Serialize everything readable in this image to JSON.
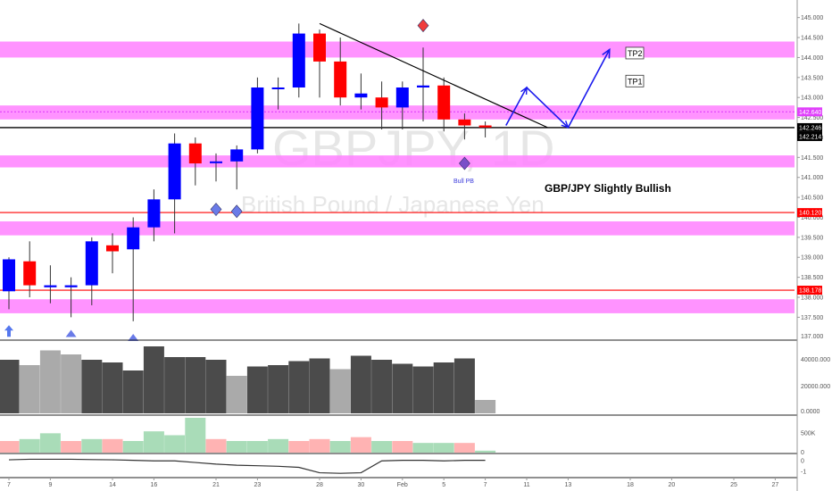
{
  "chart_data": {
    "type": "candlestick",
    "symbol": "GBPJPY, 1D",
    "description": "British Pound / Japanese Yen",
    "annotation": "GBP/JPY Slightly Bullish",
    "pattern_label": "Bull PB",
    "targets": [
      {
        "label": "TP2",
        "price": 144.1
      },
      {
        "label": "TP1",
        "price": 143.4
      }
    ],
    "price_axis": {
      "ylim": [
        136.95,
        145.35
      ],
      "ticks": [
        "137.500",
        "138.000",
        "138.500",
        "139.000",
        "139.500",
        "140.000",
        "140.500",
        "141.000",
        "141.500",
        "142.000",
        "142.500",
        "143.000",
        "143.500",
        "144.000",
        "144.500",
        "145.000"
      ],
      "partial_ticks": [
        {
          "price": 137.0,
          "label": "137.000"
        }
      ]
    },
    "price_tags": [
      {
        "label": "142.640",
        "price": 142.64,
        "color": "#e040fb"
      },
      {
        "label": "142.246",
        "price": 142.246,
        "color": "#000000"
      },
      {
        "label": "142.214",
        "price": 142.214,
        "color": "#000000"
      },
      {
        "label": "140.120",
        "price": 140.12,
        "color": "#ff0000"
      },
      {
        "label": "138.178",
        "price": 138.178,
        "color": "#ff0000"
      }
    ],
    "zones": [
      {
        "from": 144.0,
        "to": 144.4
      },
      {
        "from": 142.45,
        "to": 142.8
      },
      {
        "from": 141.25,
        "to": 141.55
      },
      {
        "from": 139.55,
        "to": 139.9
      },
      {
        "from": 137.6,
        "to": 137.95
      }
    ],
    "hlines": [
      {
        "price": 142.64,
        "color": "#e040fb",
        "style": "dotted"
      },
      {
        "price": 142.246,
        "color": "#000000",
        "style": "solid"
      },
      {
        "price": 140.12,
        "color": "#ff0000",
        "style": "solid"
      },
      {
        "price": 138.178,
        "color": "#ff0000",
        "style": "solid"
      }
    ],
    "trendline": {
      "from": {
        "slot": 15,
        "price": 144.85
      },
      "to": {
        "slot": 26,
        "price": 142.25
      }
    },
    "projection_path": [
      {
        "slot": 24,
        "price": 142.3
      },
      {
        "slot": 25,
        "price": 143.25
      },
      {
        "slot": 27,
        "price": 142.25
      },
      {
        "slot": 29,
        "price": 144.2
      }
    ],
    "markers": [
      {
        "slot": 20,
        "price": 144.8,
        "shape": "diamond",
        "color": "#f03c3c"
      },
      {
        "slot": 22,
        "price": 141.35,
        "shape": "diamond",
        "color": "#7b4fc9"
      },
      {
        "slot": 10,
        "price": 140.2,
        "shape": "diamond",
        "color": "#6a7be8"
      },
      {
        "slot": 11,
        "price": 140.15,
        "shape": "diamond",
        "color": "#6a7be8"
      },
      {
        "slot": 0,
        "price": 137.1,
        "shape": "arrow-up",
        "color": "#5577ee"
      },
      {
        "slot": 3,
        "price": 137.05,
        "shape": "triangle-up",
        "color": "#6a7be8"
      },
      {
        "slot": 6,
        "price": 136.95,
        "shape": "triangle-up",
        "color": "#6a7be8"
      }
    ],
    "candles": [
      {
        "o": 138.15,
        "h": 139.0,
        "l": 137.7,
        "c": 138.95
      },
      {
        "o": 138.9,
        "h": 139.4,
        "l": 138.0,
        "c": 138.3
      },
      {
        "o": 138.25,
        "h": 138.8,
        "l": 137.85,
        "c": 138.3
      },
      {
        "o": 138.25,
        "h": 138.5,
        "l": 137.5,
        "c": 138.3
      },
      {
        "o": 138.3,
        "h": 139.5,
        "l": 137.8,
        "c": 139.4
      },
      {
        "o": 139.3,
        "h": 139.6,
        "l": 138.6,
        "c": 139.15
      },
      {
        "o": 139.2,
        "h": 140.0,
        "l": 137.4,
        "c": 139.75
      },
      {
        "o": 139.75,
        "h": 140.7,
        "l": 139.4,
        "c": 140.45
      },
      {
        "o": 140.45,
        "h": 142.1,
        "l": 139.6,
        "c": 141.85
      },
      {
        "o": 141.85,
        "h": 142.0,
        "l": 140.8,
        "c": 141.35
      },
      {
        "o": 141.4,
        "h": 141.6,
        "l": 140.9,
        "c": 141.4
      },
      {
        "o": 141.4,
        "h": 141.8,
        "l": 140.7,
        "c": 141.7
      },
      {
        "o": 141.7,
        "h": 143.5,
        "l": 141.6,
        "c": 143.25
      },
      {
        "o": 143.25,
        "h": 143.5,
        "l": 142.7,
        "c": 143.25
      },
      {
        "o": 143.25,
        "h": 144.85,
        "l": 143.0,
        "c": 144.6
      },
      {
        "o": 144.6,
        "h": 144.7,
        "l": 143.0,
        "c": 143.9
      },
      {
        "o": 143.9,
        "h": 144.5,
        "l": 142.8,
        "c": 143.0
      },
      {
        "o": 143.0,
        "h": 143.6,
        "l": 142.7,
        "c": 143.1
      },
      {
        "o": 143.0,
        "h": 143.4,
        "l": 142.2,
        "c": 142.75
      },
      {
        "o": 142.75,
        "h": 143.4,
        "l": 142.2,
        "c": 143.25
      },
      {
        "o": 143.25,
        "h": 144.25,
        "l": 142.4,
        "c": 143.3
      },
      {
        "o": 143.3,
        "h": 143.5,
        "l": 142.15,
        "c": 142.45
      },
      {
        "o": 142.45,
        "h": 142.6,
        "l": 141.95,
        "c": 142.3
      },
      {
        "o": 142.3,
        "h": 142.4,
        "l": 142.0,
        "c": 142.25
      }
    ],
    "volume": {
      "axis_ticks": [
        {
          "label": "40000.000",
          "value": 40000
        },
        {
          "label": "20000.000",
          "value": 20000
        },
        {
          "label": "0.0000",
          "value": 0
        }
      ],
      "max": 52000,
      "values": [
        40000,
        36000,
        47000,
        44000,
        40000,
        38000,
        32000,
        50000,
        42000,
        42000,
        40000,
        28000,
        35000,
        36000,
        39000,
        41000,
        33000,
        43000,
        40000,
        37000,
        35000,
        38000,
        41000,
        10000
      ],
      "colors": [
        "#4b4b4b",
        "#aaaaaa",
        "#aaaaaa",
        "#aaaaaa",
        "#4b4b4b",
        "#4b4b4b",
        "#4b4b4b",
        "#4b4b4b",
        "#4b4b4b",
        "#4b4b4b",
        "#4b4b4b",
        "#aaaaaa",
        "#4b4b4b",
        "#4b4b4b",
        "#4b4b4b",
        "#4b4b4b",
        "#aaaaaa",
        "#4b4b4b",
        "#4b4b4b",
        "#4b4b4b",
        "#4b4b4b",
        "#4b4b4b",
        "#4b4b4b",
        "#aaaaaa"
      ]
    },
    "histogram": {
      "axis_ticks": [
        {
          "label": "500K",
          "value": 500000
        },
        {
          "label": "0",
          "value": 0
        }
      ],
      "max": 900000,
      "values": [
        300000,
        350000,
        500000,
        300000,
        350000,
        350000,
        300000,
        550000,
        450000,
        900000,
        350000,
        300000,
        300000,
        350000,
        300000,
        350000,
        300000,
        400000,
        300000,
        300000,
        250000,
        250000,
        250000,
        50000
      ],
      "colors": [
        "#ffb3b3",
        "#a9dcb8",
        "#a9dcb8",
        "#ffb3b3",
        "#a9dcb8",
        "#ffb3b3",
        "#a9dcb8",
        "#a9dcb8",
        "#a9dcb8",
        "#a9dcb8",
        "#ffb3b3",
        "#a9dcb8",
        "#a9dcb8",
        "#a9dcb8",
        "#ffb3b3",
        "#ffb3b3",
        "#a9dcb8",
        "#ffb3b3",
        "#a9dcb8",
        "#ffb3b3",
        "#a9dcb8",
        "#a9dcb8",
        "#ffb3b3",
        "#a9dcb8"
      ]
    },
    "oscillator": {
      "axis_ticks": [
        {
          "label": "0",
          "value": 0
        },
        {
          "label": "-1",
          "value": -1
        }
      ],
      "range": [
        -1.3,
        0.6
      ],
      "values": [
        0.1,
        0.15,
        0.15,
        0.15,
        0.12,
        0.1,
        0.05,
        0.0,
        0.0,
        -0.15,
        -0.3,
        -0.4,
        -0.45,
        -0.5,
        -0.6,
        -1.1,
        -1.15,
        -1.1,
        0.0,
        0.05,
        0.05,
        0.0,
        0.05,
        0.05
      ]
    },
    "x_axis": {
      "labels": [
        {
          "slot": 0,
          "label": "7"
        },
        {
          "slot": 2,
          "label": "9"
        },
        {
          "slot": 5,
          "label": "14"
        },
        {
          "slot": 7,
          "label": "16"
        },
        {
          "slot": 10,
          "label": "21"
        },
        {
          "slot": 12,
          "label": "23"
        },
        {
          "slot": 15,
          "label": "28"
        },
        {
          "slot": 17,
          "label": "30"
        },
        {
          "slot": 19,
          "label": "Feb"
        },
        {
          "slot": 21,
          "label": "5"
        },
        {
          "slot": 23,
          "label": "7"
        },
        {
          "slot": 25,
          "label": "11"
        },
        {
          "slot": 27,
          "label": "13"
        },
        {
          "slot": 30,
          "label": "18"
        },
        {
          "slot": 32,
          "label": "20"
        },
        {
          "slot": 35,
          "label": "25"
        },
        {
          "slot": 37,
          "label": "27"
        }
      ]
    },
    "colors": {
      "up": "#0000ff",
      "down": "#ff0000",
      "zone": "#ff80ff",
      "axis": "#888888"
    }
  }
}
